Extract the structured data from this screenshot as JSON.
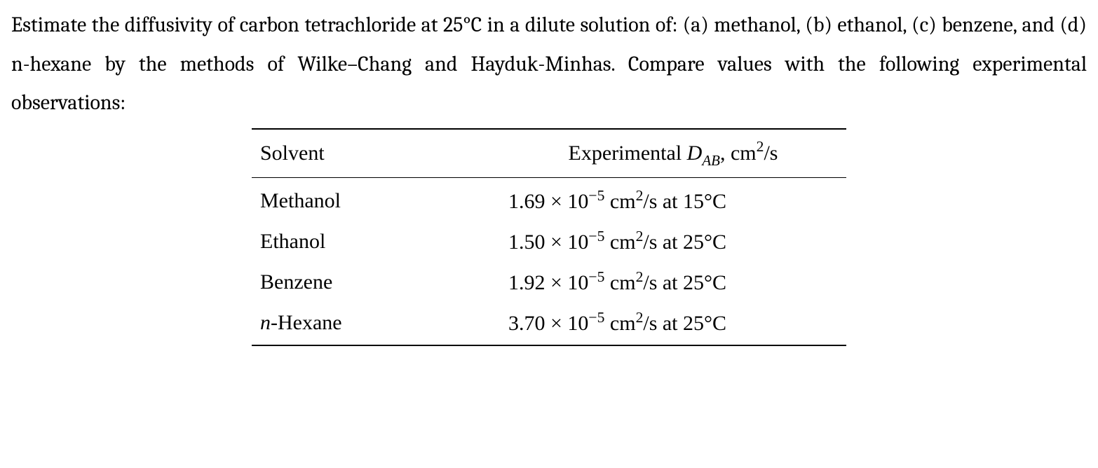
{
  "prompt": {
    "text_html": "Estimate the diffusivity of carbon tetrachloride at 25°C in a dilute solution of: (a) methanol, (b) ethanol, (c) benzene, and (d) n-hexane by the methods of Wilke–Chang and Hayduk-Minhas. Compare values with the following experimental observations:"
  },
  "table": {
    "header": {
      "solvent": "Solvent",
      "value_html": "Experimental <span class=\"ital dab\">D<span class=\"sub\">AB</span></span>, cm<span class=\"sup\">2</span>/s"
    },
    "rows": [
      {
        "solvent_html": "Methanol",
        "value_html": "1.69 × 10<span class=\"sup\">−5</span> cm<span class=\"sup\">2</span>/s at 15°C"
      },
      {
        "solvent_html": "Ethanol",
        "value_html": "1.50 × 10<span class=\"sup\">−5</span> cm<span class=\"sup\">2</span>/s at 25°C"
      },
      {
        "solvent_html": "Benzene",
        "value_html": "1.92 × 10<span class=\"sup\">−5</span> cm<span class=\"sup\">2</span>/s at 25°C"
      },
      {
        "solvent_html": "<span class=\"ital\">n</span>-Hexane",
        "value_html": "3.70 × 10<span class=\"sup\">−5</span> cm<span class=\"sup\">2</span>/s at 25°C"
      }
    ]
  }
}
